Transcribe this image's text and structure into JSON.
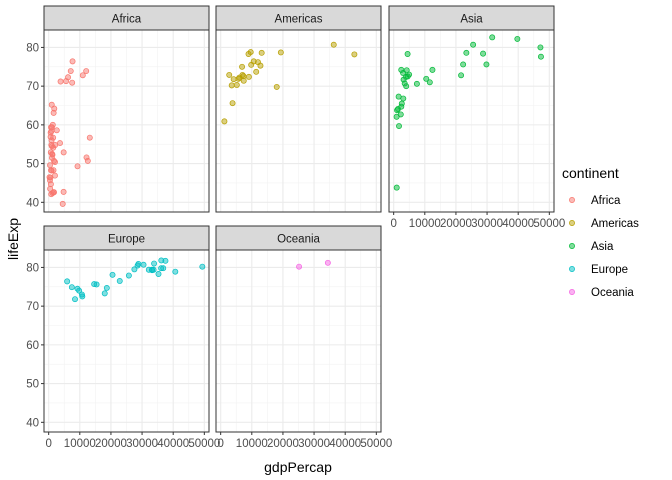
{
  "chart_data": {
    "type": "scatter",
    "facet_by": "continent",
    "facets": [
      "Africa",
      "Americas",
      "Asia",
      "Europe",
      "Oceania"
    ],
    "xlabel": "gdpPercap",
    "ylabel": "lifeExp",
    "xlim": [
      -1500,
      51500
    ],
    "ylim": [
      37.5,
      84.5
    ],
    "x_ticks": [
      0,
      10000,
      20000,
      30000,
      40000,
      50000
    ],
    "x_tick_labels": [
      "0",
      "10000",
      "20000",
      "30000",
      "40000",
      "50000"
    ],
    "y_ticks": [
      40,
      50,
      60,
      70,
      80
    ],
    "y_tick_labels": [
      "40",
      "50",
      "60",
      "70",
      "80"
    ],
    "grid": true,
    "theme": "bw",
    "point_alpha": 0.5,
    "legend": {
      "title": "continent",
      "position": "right",
      "entries": [
        "Africa",
        "Americas",
        "Asia",
        "Europe",
        "Oceania"
      ]
    },
    "series": [
      {
        "name": "Africa",
        "color": "#F8766D",
        "points": [
          [
            6223,
            72.3
          ],
          [
            4797,
            42.7
          ],
          [
            1441,
            56.7
          ],
          [
            12570,
            50.7
          ],
          [
            1217,
            52.3
          ],
          [
            430,
            49.6
          ],
          [
            2042,
            50.4
          ],
          [
            706,
            44.7
          ],
          [
            1704,
            50.7
          ],
          [
            986,
            65.2
          ],
          [
            277,
            46.5
          ],
          [
            3633,
            55.3
          ],
          [
            1545,
            48.3
          ],
          [
            2082,
            54.8
          ],
          [
            5581,
            71.3
          ],
          [
            12154,
            51.6
          ],
          [
            641,
            58.0
          ],
          [
            691,
            52.9
          ],
          [
            13206,
            56.7
          ],
          [
            753,
            59.4
          ],
          [
            1328,
            60.0
          ],
          [
            942,
            56.0
          ],
          [
            579,
            46.4
          ],
          [
            1463,
            54.1
          ],
          [
            1569,
            42.6
          ],
          [
            415,
            45.7
          ],
          [
            12057,
            73.9
          ],
          [
            1045,
            59.4
          ],
          [
            759,
            48.3
          ],
          [
            1042,
            54.5
          ],
          [
            1803,
            64.2
          ],
          [
            10957,
            72.8
          ],
          [
            3820,
            71.2
          ],
          [
            824,
            42.1
          ],
          [
            4811,
            52.9
          ],
          [
            620,
            56.9
          ],
          [
            2014,
            46.9
          ],
          [
            7670,
            76.4
          ],
          [
            863,
            54.8
          ],
          [
            1598,
            63.1
          ],
          [
            1712,
            42.6
          ],
          [
            926,
            48.2
          ],
          [
            9270,
            49.3
          ],
          [
            2602,
            58.6
          ],
          [
            4513,
            39.6
          ],
          [
            1107,
            52.5
          ],
          [
            883,
            58.4
          ],
          [
            7093,
            73.9
          ],
          [
            1056,
            51.5
          ],
          [
            1271,
            42.4
          ],
          [
            470,
            43.5
          ],
          [
            7550,
            70.9
          ]
        ]
      },
      {
        "name": "Americas",
        "color": "#B79F00",
        "points": [
          [
            12779,
            75.3
          ],
          [
            3822,
            65.6
          ],
          [
            9066,
            72.4
          ],
          [
            36319,
            80.7
          ],
          [
            13172,
            78.6
          ],
          [
            7007,
            72.9
          ],
          [
            9645,
            78.8
          ],
          [
            8948,
            78.3
          ],
          [
            6025,
            72.2
          ],
          [
            6873,
            75.0
          ],
          [
            5728,
            71.9
          ],
          [
            5186,
            70.3
          ],
          [
            1202,
            60.9
          ],
          [
            3548,
            70.2
          ],
          [
            7321,
            72.6
          ],
          [
            11978,
            76.2
          ],
          [
            2749,
            72.9
          ],
          [
            9809,
            75.5
          ],
          [
            4173,
            71.8
          ],
          [
            7409,
            71.4
          ],
          [
            19329,
            78.7
          ],
          [
            18009,
            69.8
          ],
          [
            42952,
            78.2
          ],
          [
            10611,
            76.4
          ],
          [
            11416,
            73.7
          ]
        ]
      },
      {
        "name": "Asia",
        "color": "#00BA38",
        "points": [
          [
            975,
            43.8
          ],
          [
            29796,
            75.6
          ],
          [
            1391,
            64.1
          ],
          [
            1714,
            59.7
          ],
          [
            4959,
            73.0
          ],
          [
            39725,
            82.2
          ],
          [
            2452,
            64.7
          ],
          [
            3541,
            70.7
          ],
          [
            11606,
            71.0
          ],
          [
            4471,
            78.3
          ],
          [
            25523,
            80.7
          ],
          [
            31656,
            82.6
          ],
          [
            4519,
            72.5
          ],
          [
            1593,
            67.3
          ],
          [
            23348,
            78.6
          ],
          [
            47307,
            77.6
          ],
          [
            10461,
            71.9
          ],
          [
            4024,
            70.0
          ],
          [
            12452,
            74.2
          ],
          [
            3096,
            66.8
          ],
          [
            944,
            62.1
          ],
          [
            1091,
            63.8
          ],
          [
            22316,
            75.6
          ],
          [
            2606,
            65.5
          ],
          [
            3190,
            71.7
          ],
          [
            21655,
            72.8
          ],
          [
            47143,
            80.0
          ],
          [
            3970,
            72.4
          ],
          [
            4185,
            74.1
          ],
          [
            28718,
            78.4
          ],
          [
            7458,
            70.6
          ],
          [
            2442,
            74.2
          ],
          [
            3025,
            73.4
          ],
          [
            2281,
            62.7
          ]
        ]
      },
      {
        "name": "Europe",
        "color": "#00BFC4",
        "points": [
          [
            5937,
            76.4
          ],
          [
            36126,
            79.8
          ],
          [
            33693,
            79.4
          ],
          [
            7446,
            74.9
          ],
          [
            10681,
            73.0
          ],
          [
            14619,
            75.7
          ],
          [
            22833,
            76.5
          ],
          [
            35278,
            78.3
          ],
          [
            33207,
            79.3
          ],
          [
            30470,
            80.7
          ],
          [
            32170,
            79.4
          ],
          [
            27538,
            79.5
          ],
          [
            18008,
            73.3
          ],
          [
            36181,
            81.8
          ],
          [
            40676,
            78.9
          ],
          [
            28570,
            80.5
          ],
          [
            9254,
            74.5
          ],
          [
            36798,
            79.8
          ],
          [
            49357,
            80.2
          ],
          [
            15390,
            75.6
          ],
          [
            20510,
            78.1
          ],
          [
            10808,
            72.5
          ],
          [
            9787,
            74.0
          ],
          [
            18678,
            74.7
          ],
          [
            25768,
            77.9
          ],
          [
            28821,
            80.9
          ],
          [
            33860,
            81.0
          ],
          [
            37506,
            81.7
          ],
          [
            8458,
            71.8
          ],
          [
            33203,
            79.4
          ]
        ]
      },
      {
        "name": "Oceania",
        "color": "#F564E3",
        "points": [
          [
            34435,
            81.2
          ],
          [
            25185,
            80.2
          ]
        ]
      }
    ]
  }
}
